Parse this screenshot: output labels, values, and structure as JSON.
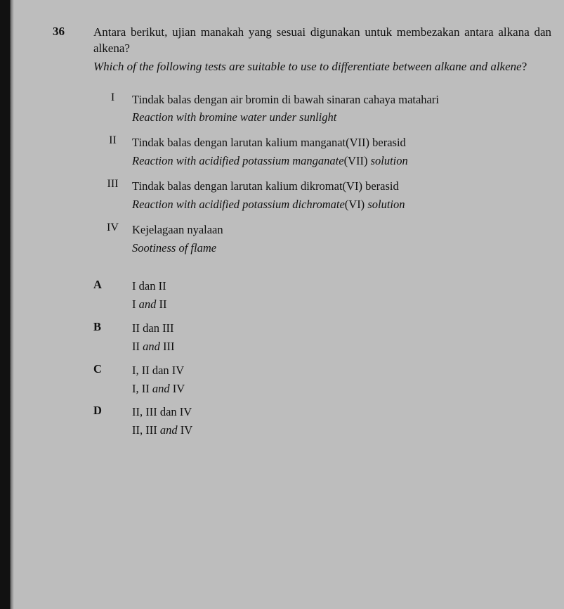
{
  "question": {
    "number": "36",
    "text_ms": "Antara berikut, ujian manakah yang sesuai digunakan untuk membezakan antara alkana dan alkena?",
    "text_en_prefix": "Which of the following tests are suitable to use to differentiate between alkane and alkene",
    "text_en_suffix": "?"
  },
  "statements": [
    {
      "label": "I",
      "ms": "Tindak balas dengan air bromin di bawah sinaran cahaya matahari",
      "en": "Reaction with bromine water under sunlight"
    },
    {
      "label": "II",
      "ms": "Tindak balas dengan larutan kalium manganat(VII) berasid",
      "en_prefix": "Reaction with acidified potassium manganate",
      "en_paren": "(VII)",
      "en_suffix": " solution"
    },
    {
      "label": "III",
      "ms": "Tindak balas dengan larutan kalium dikromat(VI) berasid",
      "en_prefix": "Reaction with acidified potassium dichromate",
      "en_paren": "(VI)",
      "en_suffix": " solution"
    },
    {
      "label": "IV",
      "ms": "Kejelagaan nyalaan",
      "en": "Sootiness of flame"
    }
  ],
  "options": [
    {
      "letter": "A",
      "ms": "I dan II",
      "en_parts": [
        "I ",
        "and",
        " II"
      ]
    },
    {
      "letter": "B",
      "ms": "II dan III",
      "en_parts": [
        "II ",
        "and",
        " III"
      ]
    },
    {
      "letter": "C",
      "ms": "I, II dan IV",
      "en_parts": [
        "I, II ",
        "and",
        "  IV"
      ]
    },
    {
      "letter": "D",
      "ms": "II, III dan IV",
      "en_parts": [
        "II, III ",
        "and",
        "  IV"
      ]
    }
  ]
}
